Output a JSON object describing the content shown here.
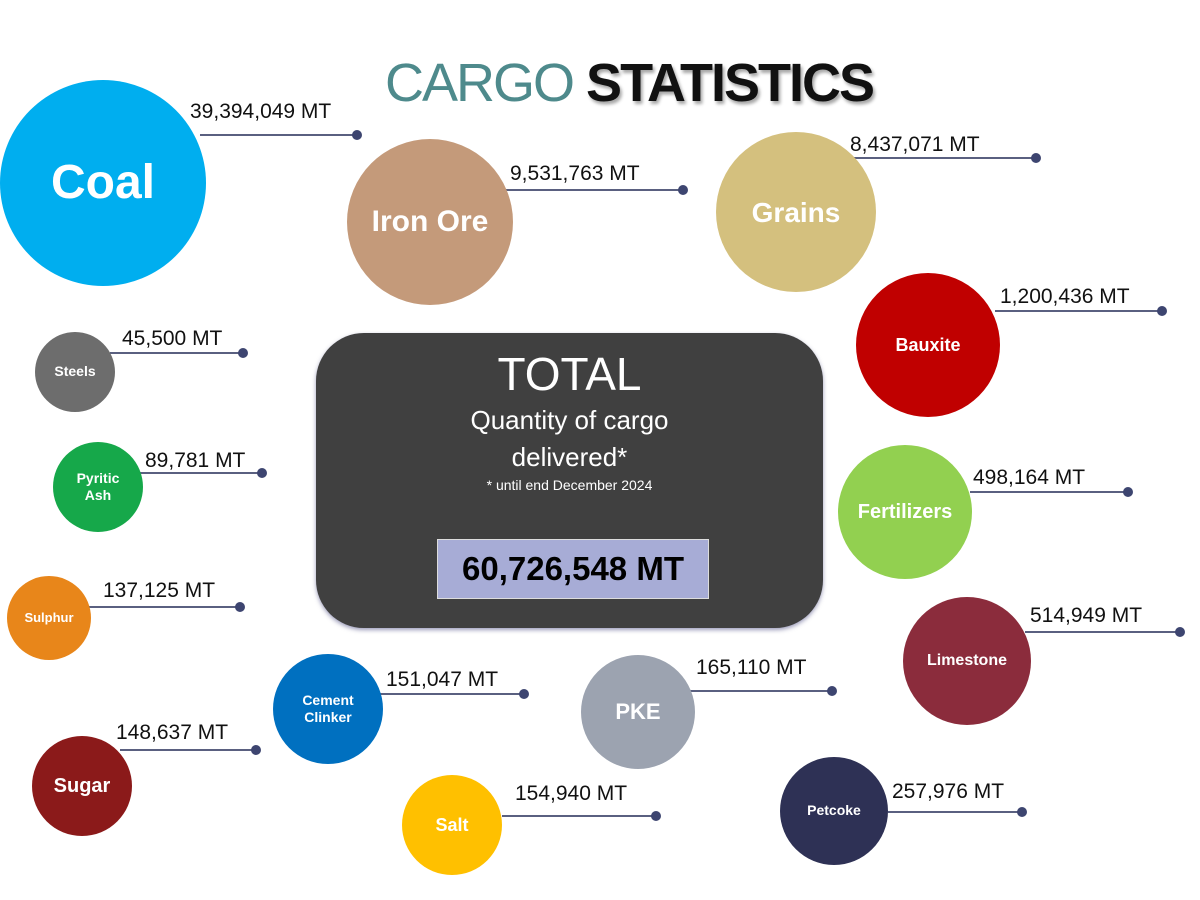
{
  "title": {
    "part1": "CARGO",
    "part2": "STATISTICS"
  },
  "total": {
    "heading": "TOTAL",
    "subheading_line1": "Quantity of cargo",
    "subheading_line2": "delivered*",
    "footnote": "* until end December 2024",
    "value": "60,726,548 MT"
  },
  "cargo": [
    {
      "name": "Coal",
      "value": "39,394,049 MT",
      "color": "#00AEEF"
    },
    {
      "name": "Iron Ore",
      "value": "9,531,763 MT",
      "color": "#C49A7A"
    },
    {
      "name": "Grains",
      "value": "8,437,071 MT",
      "color": "#D4C07E"
    },
    {
      "name": "Bauxite",
      "value": "1,200,436 MT",
      "color": "#C00000"
    },
    {
      "name": "Steels",
      "value": "45,500 MT",
      "color": "#6D6D6D"
    },
    {
      "name": "Pyritic Ash",
      "value": "89,781 MT",
      "color": "#16A84A"
    },
    {
      "name": "Fertilizers",
      "value": "498,164 MT",
      "color": "#92D050"
    },
    {
      "name": "Sulphur",
      "value": "137,125 MT",
      "color": "#E8861A"
    },
    {
      "name": "Limestone",
      "value": "514,949 MT",
      "color": "#8B2C3C"
    },
    {
      "name": "Cement Clinker",
      "value": "151,047 MT",
      "color": "#0070C0"
    },
    {
      "name": "PKE",
      "value": "165,110 MT",
      "color": "#9CA3B0"
    },
    {
      "name": "Sugar",
      "value": "148,637 MT",
      "color": "#8B1A1A"
    },
    {
      "name": "Salt",
      "value": "154,940 MT",
      "color": "#FFC000"
    },
    {
      "name": "Petcoke",
      "value": "257,976 MT",
      "color": "#2E3155"
    }
  ]
}
